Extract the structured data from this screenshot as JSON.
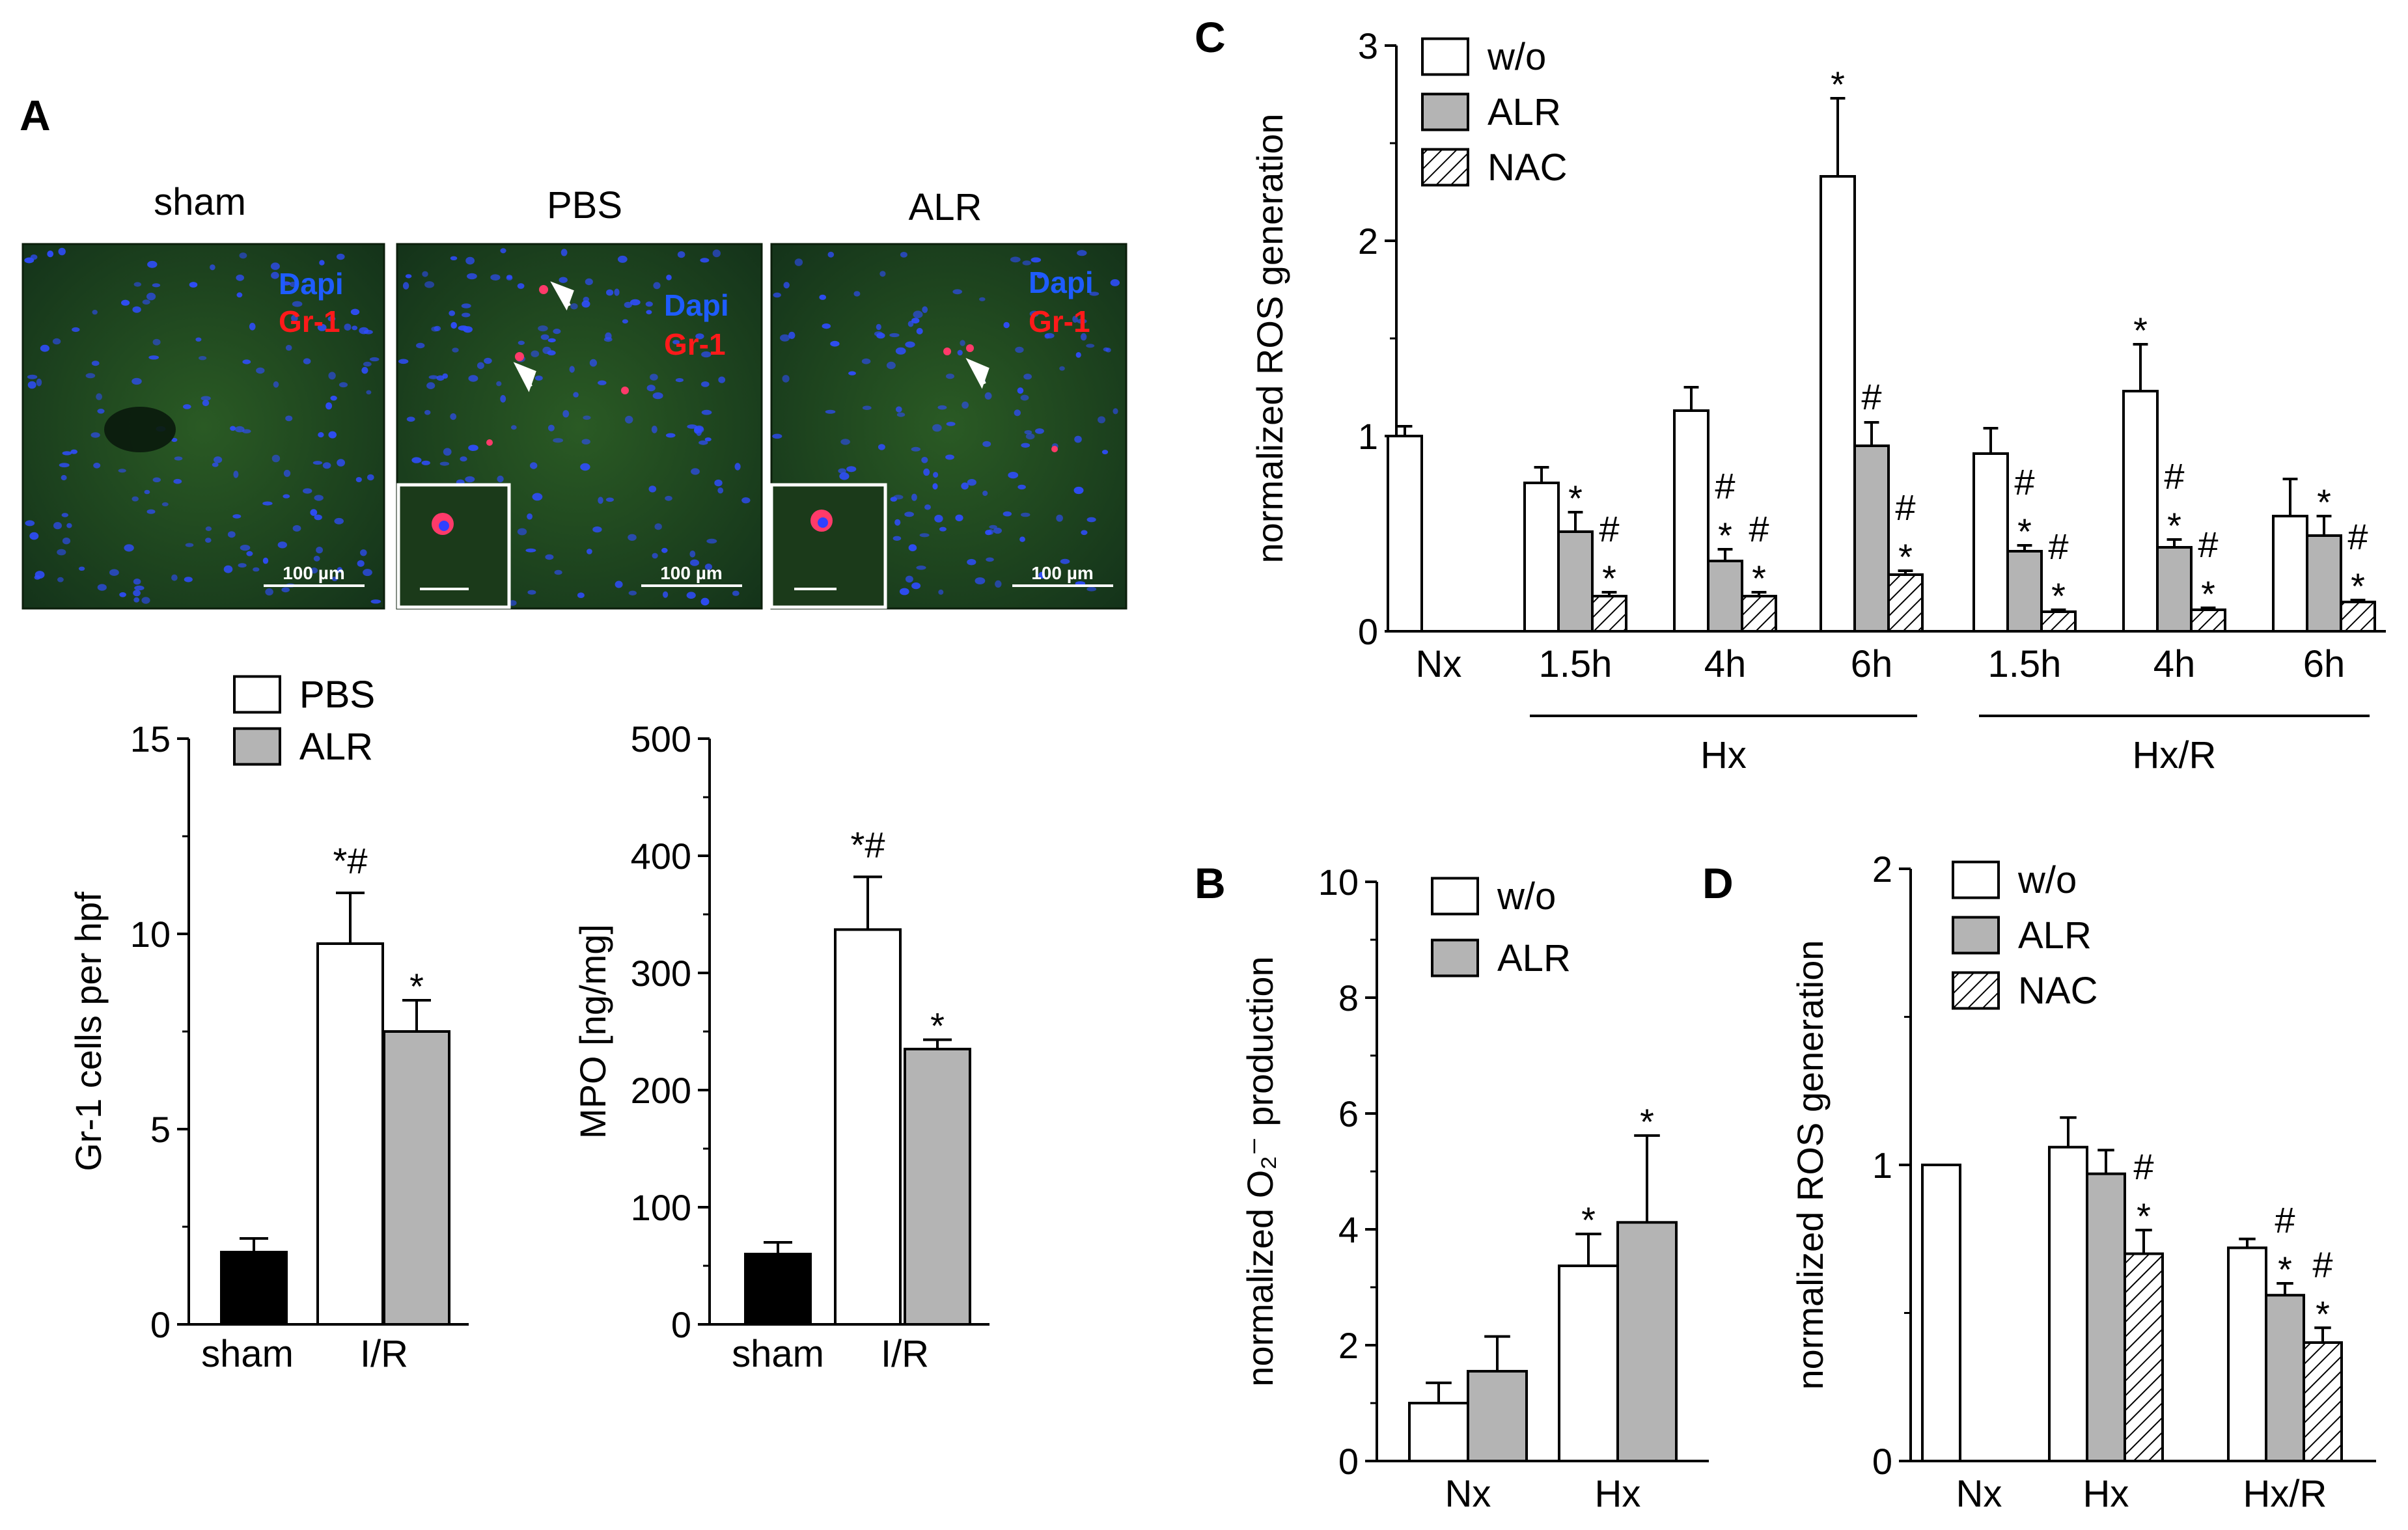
{
  "colors": {
    "white_bar": "#ffffff",
    "grey_bar": "#b4b4b4",
    "black_bar": "#000000",
    "dapi": "#1e5cff",
    "gr1": "#ff1a1a",
    "tissue": "#1f4a1c"
  },
  "panel_a": {
    "label": "A",
    "micrographs": [
      {
        "title": "sham",
        "stain1": "Dapi",
        "stain2": "Gr-1",
        "scalebar": "100 µm"
      },
      {
        "title": "PBS",
        "stain1": "Dapi",
        "stain2": "Gr-1",
        "scalebar": "100 µm"
      },
      {
        "title": "ALR",
        "stain1": "Dapi",
        "stain2": "Gr-1",
        "scalebar": "100 µm"
      }
    ]
  },
  "panel_b": {
    "label": "B"
  },
  "panel_c": {
    "label": "C"
  },
  "panel_d": {
    "label": "D"
  },
  "chart_data": [
    {
      "id": "a_gr1",
      "type": "bar",
      "panel": "A",
      "ylabel": "Gr-1 cells per hpf",
      "ylim": [
        0,
        15
      ],
      "yticks": [
        0,
        5,
        10,
        15
      ],
      "categories": [
        "sham",
        "I/R"
      ],
      "legend": [
        {
          "name": "PBS",
          "fill": "white"
        },
        {
          "name": "ALR",
          "fill": "grey"
        }
      ],
      "bars": [
        {
          "category": "sham",
          "series": "sham",
          "fill": "black",
          "value": 1.85,
          "error": 0.35,
          "annotation": ""
        },
        {
          "category": "I/R",
          "series": "PBS",
          "fill": "white",
          "value": 9.75,
          "error": 1.3,
          "annotation": "*#"
        },
        {
          "category": "I/R",
          "series": "ALR",
          "fill": "grey",
          "value": 7.5,
          "error": 0.8,
          "annotation": "*"
        }
      ]
    },
    {
      "id": "a_mpo",
      "type": "bar",
      "panel": "A",
      "ylabel": "MPO [ng/mg]",
      "ylim": [
        0,
        500
      ],
      "yticks": [
        0,
        100,
        200,
        300,
        400,
        500
      ],
      "categories": [
        "sham",
        "I/R"
      ],
      "bars": [
        {
          "category": "sham",
          "series": "sham",
          "fill": "black",
          "value": 60,
          "error": 10,
          "annotation": ""
        },
        {
          "category": "I/R",
          "series": "PBS",
          "fill": "white",
          "value": 337,
          "error": 45,
          "annotation": "*#"
        },
        {
          "category": "I/R",
          "series": "ALR",
          "fill": "grey",
          "value": 235,
          "error": 8,
          "annotation": "*"
        }
      ]
    },
    {
      "id": "c_ros",
      "type": "bar",
      "panel": "C",
      "ylabel": "normalized ROS generation",
      "ylim": [
        0,
        3
      ],
      "yticks": [
        0,
        1,
        2,
        3
      ],
      "categories": [
        "Nx",
        "1.5h",
        "4h",
        "6h",
        "1.5h",
        "4h",
        "6h"
      ],
      "groups": [
        {
          "label": "Hx",
          "from": 1,
          "to": 3
        },
        {
          "label": "Hx/R",
          "from": 4,
          "to": 6
        }
      ],
      "legend": [
        {
          "name": "w/o",
          "fill": "white"
        },
        {
          "name": "ALR",
          "fill": "grey"
        },
        {
          "name": "NAC",
          "fill": "hatched"
        }
      ],
      "bars": [
        {
          "category": 0,
          "series": "w/o",
          "fill": "white",
          "value": 1.0,
          "error": 0.05,
          "annotation": ""
        },
        {
          "category": 1,
          "series": "w/o",
          "fill": "white",
          "value": 0.76,
          "error": 0.08,
          "annotation": ""
        },
        {
          "category": 1,
          "series": "ALR",
          "fill": "grey",
          "value": 0.51,
          "error": 0.1,
          "annotation": "*"
        },
        {
          "category": 1,
          "series": "NAC",
          "fill": "hatched",
          "value": 0.18,
          "error": 0.02,
          "annotation": "#*"
        },
        {
          "category": 2,
          "series": "w/o",
          "fill": "white",
          "value": 1.13,
          "error": 0.12,
          "annotation": ""
        },
        {
          "category": 2,
          "series": "ALR",
          "fill": "grey",
          "value": 0.36,
          "error": 0.06,
          "annotation": "#*"
        },
        {
          "category": 2,
          "series": "NAC",
          "fill": "hatched",
          "value": 0.18,
          "error": 0.02,
          "annotation": "#*"
        },
        {
          "category": 3,
          "series": "w/o",
          "fill": "white",
          "value": 2.33,
          "error": 0.4,
          "annotation": "*"
        },
        {
          "category": 3,
          "series": "ALR",
          "fill": "grey",
          "value": 0.95,
          "error": 0.12,
          "annotation": "#"
        },
        {
          "category": 3,
          "series": "NAC",
          "fill": "hatched",
          "value": 0.29,
          "error": 0.02,
          "annotation": "#*"
        },
        {
          "category": 4,
          "series": "w/o",
          "fill": "white",
          "value": 0.91,
          "error": 0.13,
          "annotation": ""
        },
        {
          "category": 4,
          "series": "ALR",
          "fill": "grey",
          "value": 0.41,
          "error": 0.03,
          "annotation": "#*"
        },
        {
          "category": 4,
          "series": "NAC",
          "fill": "hatched",
          "value": 0.1,
          "error": 0.01,
          "annotation": "#*"
        },
        {
          "category": 5,
          "series": "w/o",
          "fill": "white",
          "value": 1.23,
          "error": 0.24,
          "annotation": "*"
        },
        {
          "category": 5,
          "series": "ALR",
          "fill": "grey",
          "value": 0.43,
          "error": 0.04,
          "annotation": "#*"
        },
        {
          "category": 5,
          "series": "NAC",
          "fill": "hatched",
          "value": 0.11,
          "error": 0.01,
          "annotation": "#*"
        },
        {
          "category": 6,
          "series": "w/o",
          "fill": "white",
          "value": 0.59,
          "error": 0.19,
          "annotation": ""
        },
        {
          "category": 6,
          "series": "ALR",
          "fill": "grey",
          "value": 0.49,
          "error": 0.1,
          "annotation": "*"
        },
        {
          "category": 6,
          "series": "NAC",
          "fill": "hatched",
          "value": 0.15,
          "error": 0.01,
          "annotation": "#*"
        }
      ]
    },
    {
      "id": "b_o2",
      "type": "bar",
      "panel": "B",
      "ylabel": "normalized O₂⁻ production",
      "ylim": [
        0,
        10
      ],
      "yticks": [
        0,
        2,
        4,
        6,
        8,
        10
      ],
      "categories": [
        "Nx",
        "Hx"
      ],
      "legend": [
        {
          "name": "w/o",
          "fill": "white"
        },
        {
          "name": "ALR",
          "fill": "grey"
        }
      ],
      "bars": [
        {
          "category": 0,
          "series": "w/o",
          "fill": "white",
          "value": 1.0,
          "error": 0.35,
          "annotation": ""
        },
        {
          "category": 0,
          "series": "ALR",
          "fill": "grey",
          "value": 1.55,
          "error": 0.6,
          "annotation": ""
        },
        {
          "category": 1,
          "series": "w/o",
          "fill": "white",
          "value": 3.37,
          "error": 0.55,
          "annotation": "*"
        },
        {
          "category": 1,
          "series": "ALR",
          "fill": "grey",
          "value": 4.12,
          "error": 1.5,
          "annotation": "*"
        }
      ]
    },
    {
      "id": "d_ros",
      "type": "bar",
      "panel": "D",
      "ylabel": "normalized ROS generation",
      "ylim": [
        0,
        2
      ],
      "yticks": [
        0,
        1,
        2
      ],
      "categories": [
        "Nx",
        "Hx",
        "Hx/R"
      ],
      "legend": [
        {
          "name": "w/o",
          "fill": "white"
        },
        {
          "name": "ALR",
          "fill": "grey"
        },
        {
          "name": "NAC",
          "fill": "hatched"
        }
      ],
      "bars": [
        {
          "category": 0,
          "series": "w/o",
          "fill": "white",
          "value": 1.0,
          "error": 0,
          "annotation": ""
        },
        {
          "category": 1,
          "series": "w/o",
          "fill": "white",
          "value": 1.06,
          "error": 0.1,
          "annotation": ""
        },
        {
          "category": 1,
          "series": "ALR",
          "fill": "grey",
          "value": 0.97,
          "error": 0.08,
          "annotation": ""
        },
        {
          "category": 1,
          "series": "NAC",
          "fill": "hatched",
          "value": 0.7,
          "error": 0.08,
          "annotation": "#*"
        },
        {
          "category": 2,
          "series": "w/o",
          "fill": "white",
          "value": 0.72,
          "error": 0.03,
          "annotation": ""
        },
        {
          "category": 2,
          "series": "ALR",
          "fill": "grey",
          "value": 0.56,
          "error": 0.04,
          "annotation": "#*"
        },
        {
          "category": 2,
          "series": "NAC",
          "fill": "hatched",
          "value": 0.4,
          "error": 0.05,
          "annotation": "#*"
        }
      ]
    }
  ]
}
